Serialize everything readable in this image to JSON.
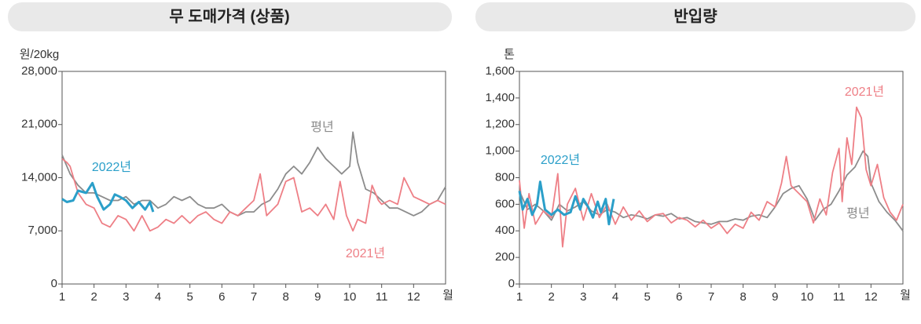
{
  "chart_data": [
    {
      "type": "line",
      "title": "무 도매가격 (상품)",
      "y_unit": "원/20kg",
      "x_unit": "월",
      "xlim": [
        1,
        13
      ],
      "xticks": [
        1,
        2,
        3,
        4,
        5,
        6,
        7,
        8,
        9,
        10,
        11,
        12
      ],
      "ylim": [
        0,
        28000
      ],
      "yticks": [
        0,
        {
          "value": 7000,
          "label": "7,000"
        },
        {
          "value": 14000,
          "label": "14,000"
        },
        {
          "value": 21000,
          "label": "21,000"
        },
        {
          "value": 28000,
          "label": "28,000"
        }
      ],
      "series": [
        {
          "name": "평년",
          "color": "#8c8c8c",
          "x": [
            1,
            1.25,
            1.5,
            1.75,
            2,
            2.25,
            2.5,
            2.75,
            3,
            3.25,
            3.5,
            3.75,
            4,
            4.25,
            4.5,
            4.75,
            5,
            5.25,
            5.5,
            5.75,
            6,
            6.25,
            6.5,
            6.75,
            7,
            7.25,
            7.5,
            7.75,
            8,
            8.25,
            8.5,
            8.75,
            9,
            9.25,
            9.5,
            9.75,
            10,
            10.1,
            10.25,
            10.5,
            10.75,
            11,
            11.25,
            11.5,
            11.75,
            12,
            12.25,
            12.5,
            12.75,
            13
          ],
          "values": [
            17000,
            14500,
            13000,
            12000,
            12000,
            11500,
            11000,
            11000,
            11500,
            10500,
            11000,
            11000,
            10000,
            10500,
            11500,
            11000,
            11500,
            10500,
            10000,
            10000,
            10500,
            9500,
            9000,
            9500,
            9500,
            10500,
            11000,
            12500,
            14500,
            15500,
            14500,
            16000,
            18000,
            16500,
            15500,
            14500,
            15500,
            20000,
            16000,
            12500,
            12000,
            11000,
            10000,
            10000,
            9500,
            9000,
            9500,
            10500,
            11000,
            12800
          ]
        },
        {
          "name": "2021년",
          "color": "#ee7f86",
          "x": [
            1,
            1.15,
            1.25,
            1.5,
            1.75,
            2,
            2.25,
            2.5,
            2.75,
            3,
            3.25,
            3.5,
            3.75,
            4,
            4.25,
            4.5,
            4.75,
            5,
            5.25,
            5.5,
            5.75,
            6,
            6.25,
            6.5,
            6.75,
            7,
            7.2,
            7.4,
            7.75,
            8,
            8.25,
            8.5,
            8.75,
            9,
            9.25,
            9.5,
            9.7,
            9.9,
            10.1,
            10.25,
            10.5,
            10.7,
            10.9,
            11,
            11.25,
            11.5,
            11.7,
            12,
            12.25,
            12.5,
            12.75,
            13
          ],
          "values": [
            16500,
            16000,
            15500,
            12000,
            10500,
            10000,
            8000,
            7500,
            9000,
            8500,
            7000,
            9000,
            7000,
            7500,
            8500,
            8000,
            9000,
            8000,
            9000,
            9500,
            8500,
            8000,
            9500,
            9000,
            10000,
            11000,
            14500,
            9000,
            10500,
            13500,
            14000,
            9500,
            10000,
            9000,
            10500,
            8500,
            13500,
            9000,
            7000,
            8500,
            8000,
            13000,
            11000,
            10500,
            11000,
            10500,
            14000,
            11500,
            11000,
            10500,
            11000,
            10500
          ]
        },
        {
          "name": "2022년",
          "color": "#2b9fc9",
          "x": [
            1,
            1.15,
            1.35,
            1.5,
            1.75,
            1.95,
            2.1,
            2.3,
            2.5,
            2.65,
            2.8,
            3,
            3.2,
            3.4,
            3.6,
            3.75,
            3.85
          ],
          "values": [
            11200,
            10800,
            11000,
            12300,
            12000,
            13300,
            11500,
            9800,
            10500,
            11800,
            11500,
            11000,
            10000,
            10800,
            9800,
            10800,
            9500
          ]
        }
      ]
    },
    {
      "type": "line",
      "title": "반입량",
      "y_unit": "톤",
      "x_unit": "월",
      "xlim": [
        1,
        13
      ],
      "xticks": [
        1,
        2,
        3,
        4,
        5,
        6,
        7,
        8,
        9,
        10,
        11,
        12
      ],
      "ylim": [
        0,
        1600
      ],
      "yticks": [
        0,
        200,
        400,
        600,
        800,
        {
          "value": 1000,
          "label": "1,000"
        },
        {
          "value": 1200,
          "label": "1,200"
        },
        {
          "value": 1400,
          "label": "1,400"
        },
        {
          "value": 1600,
          "label": "1,600"
        }
      ],
      "series": [
        {
          "name": "평년",
          "color": "#8c8c8c",
          "x": [
            1,
            1.25,
            1.5,
            1.75,
            2,
            2.25,
            2.5,
            2.75,
            3,
            3.25,
            3.5,
            3.75,
            4,
            4.25,
            4.5,
            4.75,
            5,
            5.25,
            5.5,
            5.75,
            6,
            6.25,
            6.5,
            6.75,
            7,
            7.25,
            7.5,
            7.75,
            8,
            8.25,
            8.5,
            8.75,
            9,
            9.25,
            9.5,
            9.75,
            10,
            10.25,
            10.5,
            10.75,
            11,
            11.25,
            11.5,
            11.75,
            11.9,
            12,
            12.25,
            12.5,
            12.75,
            13
          ],
          "values": [
            700,
            560,
            600,
            550,
            480,
            600,
            550,
            580,
            620,
            550,
            520,
            560,
            540,
            500,
            520,
            510,
            490,
            520,
            510,
            530,
            490,
            500,
            470,
            460,
            450,
            470,
            470,
            490,
            480,
            510,
            520,
            500,
            580,
            680,
            720,
            740,
            640,
            480,
            560,
            600,
            700,
            820,
            880,
            1000,
            960,
            760,
            620,
            540,
            480,
            400
          ]
        },
        {
          "name": "2021년",
          "color": "#ee7f86",
          "x": [
            1,
            1.15,
            1.3,
            1.5,
            1.75,
            2,
            2.2,
            2.35,
            2.5,
            2.75,
            3,
            3.25,
            3.5,
            3.75,
            4,
            4.25,
            4.5,
            4.75,
            5,
            5.25,
            5.5,
            5.75,
            6,
            6.25,
            6.5,
            6.75,
            7,
            7.25,
            7.5,
            7.75,
            8,
            8.25,
            8.5,
            8.75,
            9,
            9.2,
            9.35,
            9.5,
            9.75,
            10,
            10.2,
            10.4,
            10.6,
            10.8,
            11,
            11.1,
            11.25,
            11.4,
            11.55,
            11.7,
            11.85,
            12,
            12.2,
            12.4,
            12.6,
            12.8,
            13
          ],
          "values": [
            780,
            420,
            680,
            450,
            550,
            500,
            830,
            280,
            600,
            720,
            480,
            680,
            500,
            600,
            450,
            580,
            480,
            550,
            470,
            520,
            530,
            460,
            500,
            480,
            430,
            480,
            420,
            460,
            380,
            450,
            420,
            540,
            480,
            620,
            580,
            760,
            960,
            740,
            680,
            620,
            460,
            640,
            520,
            840,
            1020,
            620,
            1100,
            900,
            1330,
            1250,
            860,
            740,
            900,
            650,
            540,
            480,
            600
          ]
        },
        {
          "name": "2022년",
          "color": "#2b9fc9",
          "x": [
            1,
            1.1,
            1.25,
            1.4,
            1.55,
            1.65,
            1.8,
            2,
            2.2,
            2.4,
            2.6,
            2.75,
            2.9,
            3,
            3.15,
            3.3,
            3.45,
            3.55,
            3.7,
            3.8,
            3.95
          ],
          "values": [
            700,
            560,
            640,
            520,
            600,
            770,
            560,
            520,
            560,
            520,
            540,
            660,
            560,
            640,
            580,
            500,
            620,
            540,
            640,
            450,
            640
          ]
        }
      ]
    }
  ]
}
